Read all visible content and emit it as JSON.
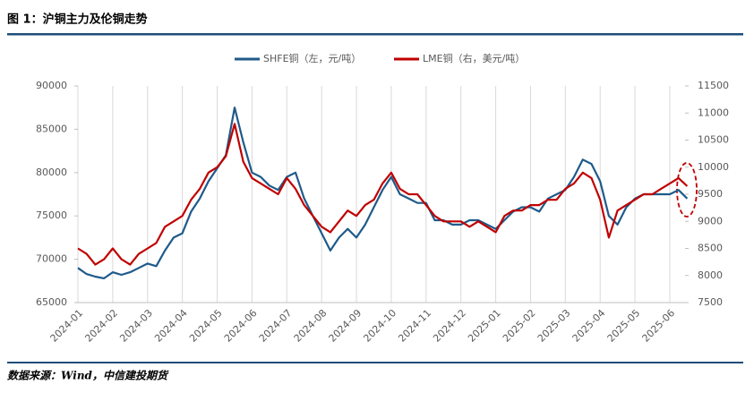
{
  "chart_data": {
    "type": "line",
    "title": "图 1：沪铜主力及伦铜走势",
    "source": "数据来源：Wind，中信建投期货",
    "categories": [
      "2024-01",
      null,
      null,
      null,
      "2024-02",
      null,
      null,
      null,
      "2024-03",
      null,
      null,
      null,
      "2024-04",
      null,
      null,
      null,
      "2024-05",
      null,
      null,
      null,
      "2024-06",
      null,
      null,
      null,
      "2024-07",
      null,
      null,
      null,
      "2024-08",
      null,
      null,
      null,
      "2024-09",
      null,
      null,
      null,
      "2024-10",
      null,
      null,
      null,
      "2024-11",
      null,
      null,
      null,
      "2024-12",
      null,
      null,
      null,
      "2025-01",
      null,
      null,
      null,
      "2025-02",
      null,
      null,
      null,
      "2025-03",
      null,
      null,
      null,
      "2025-04",
      null,
      null,
      null,
      "2025-05",
      null,
      null,
      null,
      "2025-06",
      null,
      null
    ],
    "series": [
      {
        "name": "SHFE铜（左，元/吨）",
        "color": "#1f5a8a",
        "axis": "y",
        "values": [
          69000,
          68300,
          68000,
          67800,
          68500,
          68200,
          68500,
          69000,
          69500,
          69200,
          71000,
          72500,
          73000,
          75500,
          77000,
          79000,
          80500,
          82000,
          87500,
          83500,
          80000,
          79500,
          78500,
          78000,
          79500,
          80000,
          77000,
          75000,
          73000,
          71000,
          72500,
          73500,
          72500,
          74000,
          76000,
          78000,
          79500,
          77500,
          77000,
          76500,
          76500,
          74500,
          74500,
          74000,
          74000,
          74500,
          74500,
          74000,
          73500,
          74500,
          75500,
          76000,
          76000,
          75500,
          77000,
          77500,
          78000,
          79500,
          81500,
          81000,
          79000,
          75000,
          74000,
          76000,
          77000,
          77500,
          77500,
          77500,
          77500,
          78000,
          77000
        ]
      },
      {
        "name": "LME铜（右，美元/吨）",
        "color": "#c00000",
        "axis": "y2",
        "values": [
          8500,
          8400,
          8200,
          8300,
          8500,
          8300,
          8200,
          8400,
          8500,
          8600,
          8900,
          9000,
          9100,
          9400,
          9600,
          9900,
          10000,
          10200,
          10800,
          10100,
          9800,
          9700,
          9600,
          9500,
          9800,
          9600,
          9300,
          9100,
          8900,
          8800,
          9000,
          9200,
          9100,
          9300,
          9400,
          9700,
          9900,
          9600,
          9500,
          9500,
          9300,
          9100,
          9000,
          9000,
          9000,
          8900,
          9000,
          8900,
          8800,
          9100,
          9200,
          9200,
          9300,
          9300,
          9400,
          9400,
          9600,
          9700,
          9900,
          9800,
          9400,
          8700,
          9200,
          9300,
          9400,
          9500,
          9500,
          9600,
          9700,
          9800,
          9650
        ]
      }
    ],
    "ylim": [
      65000,
      90000
    ],
    "yticks": [
      65000,
      70000,
      75000,
      80000,
      85000,
      90000
    ],
    "y2lim": [
      7500,
      11500
    ],
    "y2ticks": [
      7500,
      8000,
      8500,
      9000,
      9500,
      10000,
      10500,
      11000,
      11500
    ],
    "grid": true,
    "legend": "top"
  }
}
